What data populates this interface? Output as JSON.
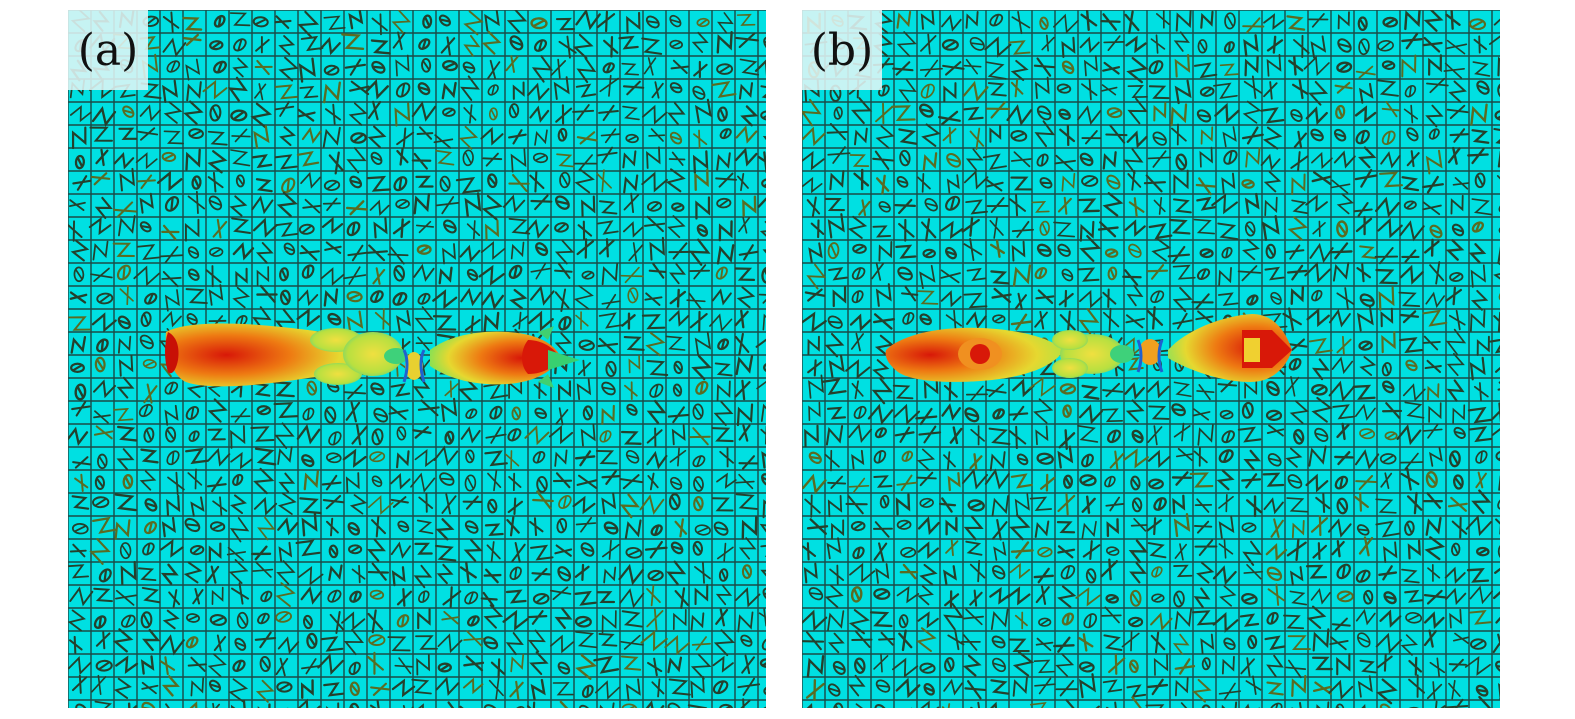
{
  "panels": [
    {
      "id": "a",
      "label": "(a)"
    },
    {
      "id": "b",
      "label": "(b)"
    }
  ],
  "colors": {
    "background": "#00e0e2",
    "grid": "#1b4a46",
    "glyph": "#24402c",
    "glyph_accent": "#5a6b22",
    "pattern_hot": "#e0200c",
    "pattern_mid": "#f0d020",
    "pattern_cool": "#40d070"
  }
}
